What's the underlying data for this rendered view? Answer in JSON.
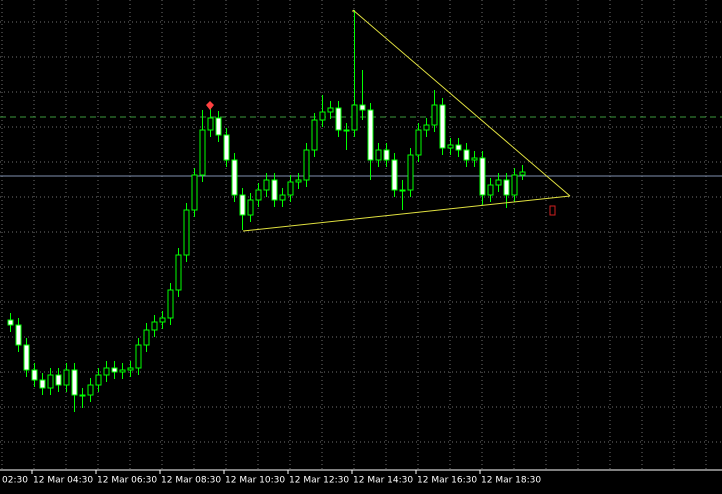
{
  "chart_data": {
    "type": "candlestick",
    "cut_label": "02:30",
    "categories": [
      null,
      null,
      null,
      "12 Mar 04:30",
      null,
      null,
      null,
      null,
      null,
      null,
      null,
      "12 Mar 06:30",
      null,
      null,
      null,
      null,
      null,
      null,
      null,
      "12 Mar 08:30",
      null,
      null,
      null,
      null,
      null,
      null,
      null,
      "12 Mar 10:30",
      null,
      null,
      null,
      null,
      null,
      null,
      null,
      "12 Mar 12:30",
      null,
      null,
      null,
      null,
      null,
      null,
      null,
      "12 Mar 14:30",
      null,
      null,
      null,
      null,
      null,
      null,
      null,
      "12 Mar 16:30",
      null,
      null,
      null,
      null,
      null,
      null,
      null,
      "12 Mar 18:30",
      null,
      null,
      null,
      null,
      null
    ],
    "open": [
      150,
      145,
      125,
      100,
      90,
      82,
      95,
      85,
      100,
      75,
      75,
      85,
      95,
      102,
      98,
      100,
      102,
      125,
      140,
      148,
      152,
      180,
      215,
      260,
      295,
      340,
      352,
      335,
      310,
      275,
      255,
      270,
      280,
      290,
      270,
      275,
      288,
      290,
      320,
      350,
      358,
      362,
      340,
      340,
      365,
      360,
      310,
      320,
      310,
      280,
      280,
      315,
      340,
      345,
      365,
      322,
      325,
      320,
      310,
      312,
      275,
      285,
      290,
      275,
      295
    ],
    "high": [
      157,
      152,
      132,
      107,
      97,
      102,
      102,
      107,
      107,
      82,
      92,
      102,
      109,
      109,
      107,
      109,
      132,
      147,
      155,
      159,
      187,
      222,
      267,
      302,
      360,
      368,
      359,
      342,
      317,
      282,
      277,
      287,
      297,
      297,
      282,
      295,
      297,
      327,
      357,
      375,
      369,
      369,
      347,
      460,
      400,
      367,
      327,
      327,
      317,
      290,
      322,
      347,
      352,
      380,
      372,
      332,
      332,
      327,
      319,
      319,
      292,
      297,
      297,
      302,
      305
    ],
    "low": [
      138,
      118,
      93,
      83,
      75,
      75,
      78,
      78,
      58,
      62,
      68,
      78,
      88,
      91,
      91,
      93,
      95,
      118,
      133,
      141,
      145,
      173,
      208,
      253,
      288,
      333,
      328,
      303,
      268,
      240,
      248,
      263,
      273,
      263,
      263,
      268,
      281,
      283,
      313,
      343,
      351,
      333,
      320,
      333,
      350,
      290,
      303,
      303,
      273,
      260,
      273,
      308,
      333,
      338,
      315,
      315,
      313,
      303,
      303,
      265,
      268,
      278,
      262,
      268,
      290
    ],
    "close": [
      145,
      125,
      100,
      90,
      82,
      95,
      85,
      100,
      75,
      75,
      85,
      95,
      102,
      98,
      100,
      102,
      125,
      140,
      148,
      152,
      180,
      215,
      260,
      295,
      340,
      352,
      335,
      310,
      275,
      255,
      270,
      280,
      290,
      270,
      275,
      288,
      290,
      320,
      350,
      358,
      362,
      340,
      340,
      365,
      360,
      310,
      320,
      310,
      280,
      280,
      315,
      340,
      345,
      365,
      322,
      325,
      320,
      310,
      312,
      275,
      285,
      290,
      275,
      295,
      298
    ],
    "ylim": [
      0,
      470
    ],
    "up_color": "#000000",
    "down_color": "#ffffff",
    "wick_color": "#00ff00"
  }
}
